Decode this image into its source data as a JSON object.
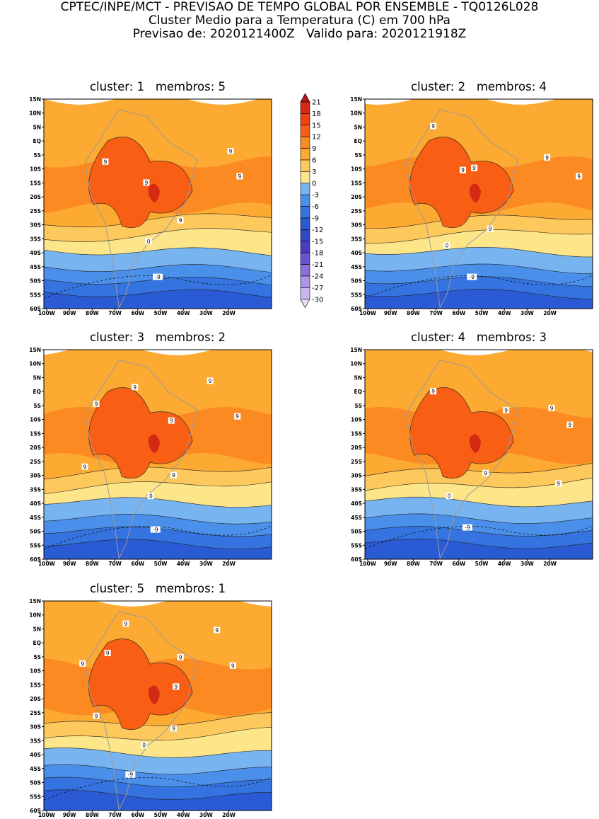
{
  "header": {
    "line1": "CPTEC/INPE/MCT - PREVISAO DE TEMPO GLOBAL POR ENSEMBLE - TQ0126L028",
    "line2": "Cluster Medio para a Temperatura (C) em 700 hPa",
    "line3": "Previsao de: 2020121400Z   Valido para: 2020121918Z"
  },
  "axes": {
    "lat_ticks": [
      "15N",
      "10N",
      "5N",
      "EQ",
      "5S",
      "10S",
      "15S",
      "20S",
      "25S",
      "30S",
      "35S",
      "40S",
      "45S",
      "50S",
      "55S",
      "60S"
    ],
    "lon_ticks": [
      "100W",
      "90W",
      "80W",
      "70W",
      "60W",
      "50W",
      "40W",
      "30W",
      "20W"
    ]
  },
  "panels": [
    {
      "title": "cluster: 1   membros: 5",
      "labels": [
        "9",
        "9",
        "9",
        "9",
        "9",
        "0",
        "-9"
      ]
    },
    {
      "title": "cluster: 2   membros: 4",
      "labels": [
        "9",
        "9",
        "9",
        "9",
        "9",
        "9",
        "0",
        "-9"
      ]
    },
    {
      "title": "cluster: 3   membros: 2",
      "labels": [
        "9",
        "9",
        "9",
        "9",
        "9",
        "9",
        "9",
        "0",
        "-9"
      ]
    },
    {
      "title": "cluster: 4   membros: 3",
      "labels": [
        "9",
        "9",
        "9",
        "9",
        "9",
        "9",
        "0",
        "-9"
      ]
    },
    {
      "title": "cluster: 5   membros: 1",
      "labels": [
        "9",
        "9",
        "9",
        "9",
        "9",
        "9",
        "9",
        "9",
        "9",
        "0",
        "-9"
      ]
    }
  ],
  "colorbar": {
    "levels": [
      "21",
      "18",
      "15",
      "12",
      "9",
      "6",
      "3",
      "0",
      "-3",
      "-6",
      "-9",
      "-12",
      "-15",
      "-18",
      "-21",
      "-24",
      "-27",
      "-30"
    ],
    "colors": [
      "#b01818",
      "#d42a14",
      "#ee4010",
      "#f85e14",
      "#fb8a22",
      "#fcaa32",
      "#fdc85c",
      "#fde68a",
      "#78b4f0",
      "#4a90ea",
      "#3473e0",
      "#2a5ad4",
      "#3048c4",
      "#4a3cc0",
      "#6a52d0",
      "#8a70dc",
      "#ac94e6",
      "#cab6ee",
      "#e6dcf6"
    ]
  }
}
